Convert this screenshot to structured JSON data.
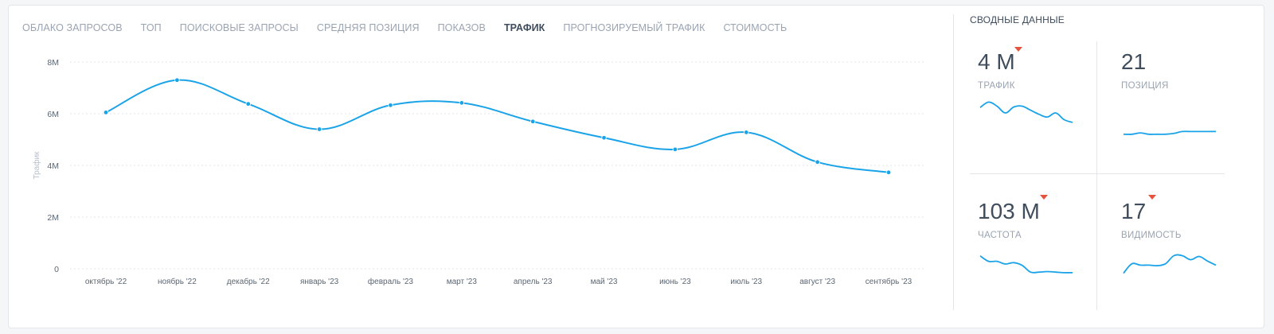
{
  "tabs": [
    {
      "label": "ОБЛАКО ЗАПРОСОВ",
      "active": false
    },
    {
      "label": "ТОП",
      "active": false
    },
    {
      "label": "ПОИСКОВЫЕ ЗАПРОСЫ",
      "active": false
    },
    {
      "label": "СРЕДНЯЯ ПОЗИЦИЯ",
      "active": false
    },
    {
      "label": "ПОКАЗОВ",
      "active": false
    },
    {
      "label": "ТРАФИК",
      "active": true
    },
    {
      "label": "ПРОГНОЗИРУЕМЫЙ ТРАФИК",
      "active": false
    },
    {
      "label": "СТОИМОСТЬ",
      "active": false
    }
  ],
  "chart_data": {
    "type": "line",
    "ylabel": "Трафик",
    "xlabel": "",
    "title": "",
    "ylim": [
      0,
      8000000
    ],
    "yticks": [
      0,
      2000000,
      4000000,
      6000000,
      8000000
    ],
    "ytick_labels": [
      "0",
      "2M",
      "4M",
      "6M",
      "8M"
    ],
    "categories": [
      "октябрь '22",
      "ноябрь '22",
      "декабрь '22",
      "январь '23",
      "февраль '23",
      "март '23",
      "апрель '23",
      "май '23",
      "июнь '23",
      "июль '23",
      "август '23",
      "сентябрь '23"
    ],
    "series": [
      {
        "values": [
          6050000,
          7300000,
          6380000,
          5400000,
          6330000,
          6420000,
          5700000,
          5070000,
          4620000,
          5280000,
          4130000,
          3730000
        ]
      }
    ],
    "grid": true,
    "color": "#1aa3e8"
  },
  "summary": {
    "title": "СВОДНЫЕ ДАННЫЕ",
    "tiles": [
      {
        "value": "4 М",
        "label": "ТРАФИК",
        "trend": "down",
        "spark": [
          0.7,
          0.9,
          0.75,
          0.5,
          0.72,
          0.75,
          0.6,
          0.45,
          0.35,
          0.5,
          0.25,
          0.15
        ]
      },
      {
        "value": "21",
        "label": "ПОЗИЦИЯ",
        "trend": "none",
        "spark": [
          0.3,
          0.3,
          0.35,
          0.3,
          0.3,
          0.3,
          0.33,
          0.4,
          0.4,
          0.4,
          0.4,
          0.4
        ]
      },
      {
        "value": "103 М",
        "label": "ЧАСТОТА",
        "trend": "down",
        "spark": [
          0.8,
          0.6,
          0.6,
          0.5,
          0.55,
          0.45,
          0.2,
          0.2,
          0.22,
          0.2,
          0.18,
          0.18
        ]
      },
      {
        "value": "17",
        "label": "ВИДИМОСТЬ",
        "trend": "down",
        "spark": [
          0.1,
          0.45,
          0.4,
          0.4,
          0.38,
          0.45,
          0.75,
          0.75,
          0.6,
          0.72,
          0.55,
          0.4
        ]
      }
    ]
  },
  "colors": {
    "accent": "#1aa3e8",
    "down": "#e5533d",
    "text": "#3f4d5c",
    "muted": "#9aa4b1"
  }
}
